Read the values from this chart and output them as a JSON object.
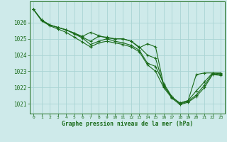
{
  "title": "Graphe pression niveau de la mer (hPa)",
  "background_color": "#ceeaea",
  "grid_color": "#aad4d4",
  "line_color": "#1a6b1a",
  "xlim": [
    -0.5,
    23.5
  ],
  "ylim": [
    1020.4,
    1027.3
  ],
  "yticks": [
    1021,
    1022,
    1023,
    1024,
    1025,
    1026
  ],
  "xticks": [
    0,
    1,
    2,
    3,
    4,
    5,
    6,
    7,
    8,
    9,
    10,
    11,
    12,
    13,
    14,
    15,
    16,
    17,
    18,
    19,
    20,
    21,
    22,
    23
  ],
  "series": [
    [
      1026.8,
      1026.15,
      1025.85,
      1025.7,
      1025.55,
      1025.35,
      1025.15,
      1025.4,
      1025.2,
      1025.05,
      1025.0,
      1025.0,
      1024.85,
      1024.45,
      1024.7,
      1024.5,
      1022.15,
      1021.4,
      1021.05,
      1021.2,
      1022.8,
      1022.9,
      1022.9,
      1022.9
    ],
    [
      1026.8,
      1026.15,
      1025.85,
      1025.7,
      1025.55,
      1025.35,
      1025.1,
      1024.85,
      1025.15,
      1025.1,
      1025.0,
      1025.0,
      1024.85,
      1024.5,
      1024.0,
      1023.8,
      1022.1,
      1021.4,
      1021.05,
      1021.2,
      1021.8,
      1022.35,
      1022.9,
      1022.85
    ],
    [
      1026.8,
      1026.15,
      1025.85,
      1025.7,
      1025.55,
      1025.3,
      1025.05,
      1024.65,
      1024.85,
      1025.0,
      1024.85,
      1024.75,
      1024.6,
      1024.3,
      1023.5,
      1023.3,
      1022.25,
      1021.45,
      1021.0,
      1021.15,
      1021.55,
      1022.15,
      1022.85,
      1022.8
    ],
    [
      1026.8,
      1026.1,
      1025.8,
      1025.6,
      1025.4,
      1025.1,
      1024.8,
      1024.5,
      1024.75,
      1024.85,
      1024.75,
      1024.65,
      1024.5,
      1024.2,
      1023.4,
      1023.0,
      1022.0,
      1021.35,
      1020.95,
      1021.1,
      1021.45,
      1022.0,
      1022.8,
      1022.75
    ]
  ]
}
